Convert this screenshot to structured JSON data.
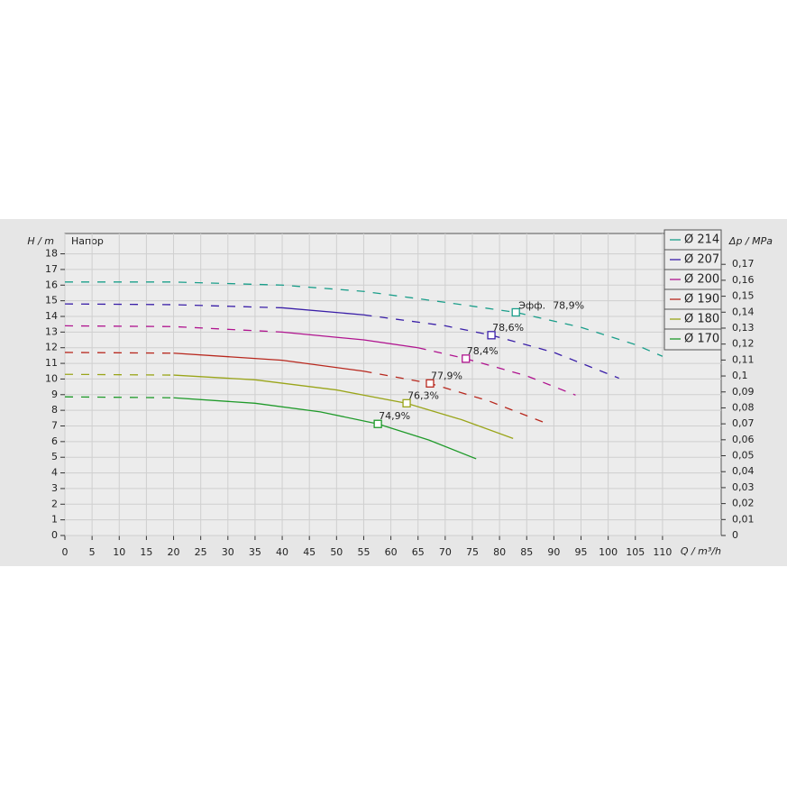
{
  "chart_data": {
    "type": "line",
    "title": "Напор",
    "x_label": "Q / m³/h",
    "y_label": "H / m",
    "y2_label": "Δp / MPa",
    "eff_label": "Эфф.",
    "xlim": [
      0,
      120.8
    ],
    "ylim": [
      0,
      19.3
    ],
    "y2lim": [
      0,
      0.18933
    ],
    "xticks": [
      0,
      5,
      10,
      15,
      20,
      25,
      30,
      35,
      40,
      45,
      50,
      55,
      60,
      65,
      70,
      75,
      80,
      85,
      90,
      95,
      100,
      105,
      110
    ],
    "yticks": [
      0,
      1,
      2,
      3,
      4,
      5,
      6,
      7,
      8,
      9,
      10,
      11,
      12,
      13,
      14,
      15,
      16,
      17,
      18
    ],
    "y2ticks": [
      0,
      {
        "value": 0.01,
        "label": "0,01"
      },
      {
        "value": 0.02,
        "label": "0,02"
      },
      {
        "value": 0.03,
        "label": "0,03"
      },
      {
        "value": 0.04,
        "label": "0,04"
      },
      {
        "value": 0.05,
        "label": "0,05"
      },
      {
        "value": 0.06,
        "label": "0,06"
      },
      {
        "value": 0.07,
        "label": "0,07"
      },
      {
        "value": 0.08,
        "label": "0,08"
      },
      {
        "value": 0.09,
        "label": "0,09"
      },
      {
        "value": 0.1,
        "label": "0,1"
      },
      {
        "value": 0.11,
        "label": "0,11"
      },
      {
        "value": 0.12,
        "label": "0,12"
      },
      {
        "value": 0.13,
        "label": "0,13"
      },
      {
        "value": 0.14,
        "label": "0,14"
      },
      {
        "value": 0.15,
        "label": "0,15"
      },
      {
        "value": 0.16,
        "label": "0,16"
      },
      {
        "value": 0.17,
        "label": "0,17"
      }
    ],
    "grid": true,
    "series": [
      {
        "name": "Ø 214",
        "color": "#1a9e8a",
        "x": [
          0,
          20,
          40,
          55,
          70,
          83,
          95,
          105,
          110
        ],
        "values": [
          16.2,
          16.2,
          16.0,
          15.6,
          14.9,
          14.26,
          13.3,
          12.2,
          11.45
        ],
        "eff": {
          "x": 83,
          "y": 14.26,
          "label": "78,9%"
        }
      },
      {
        "name": "Ø 207",
        "color": "#3a1fa8",
        "x": [
          0,
          20,
          40,
          55,
          70,
          78.5,
          90,
          102
        ],
        "values": [
          14.8,
          14.75,
          14.55,
          14.1,
          13.4,
          12.8,
          11.7,
          10.05
        ],
        "solid_x": [
          40,
          55
        ],
        "eff": {
          "x": 78.5,
          "y": 12.8,
          "label": "78,6%"
        }
      },
      {
        "name": "Ø 200",
        "color": "#b0148f",
        "x": [
          0,
          20,
          40,
          55,
          65,
          73.8,
          85,
          94
        ],
        "values": [
          13.4,
          13.35,
          13.0,
          12.5,
          12.0,
          11.3,
          10.2,
          8.97
        ],
        "solid_x": [
          40,
          65
        ],
        "eff": {
          "x": 73.8,
          "y": 11.3,
          "label": "78,4%"
        }
      },
      {
        "name": "Ø 190",
        "color": "#b8281e",
        "x": [
          0,
          20,
          40,
          55,
          67.2,
          78,
          88
        ],
        "values": [
          11.7,
          11.65,
          11.2,
          10.5,
          9.72,
          8.6,
          7.25
        ],
        "solid_x": [
          20,
          55
        ],
        "eff": {
          "x": 67.2,
          "y": 9.72,
          "label": "77,9%"
        }
      },
      {
        "name": "Ø 180",
        "color": "#9aa51a",
        "x": [
          0,
          20,
          35,
          50,
          62.9,
          73,
          82.5
        ],
        "values": [
          10.3,
          10.25,
          9.95,
          9.3,
          8.45,
          7.4,
          6.2
        ],
        "solid_x": [
          20,
          82.5
        ],
        "eff": {
          "x": 62.9,
          "y": 8.45,
          "label": "76,3%"
        }
      },
      {
        "name": "Ø 170",
        "color": "#1f9a2a",
        "x": [
          0,
          20,
          35,
          47,
          57.6,
          67,
          75.7
        ],
        "values": [
          8.86,
          8.8,
          8.45,
          7.9,
          7.13,
          6.1,
          4.9
        ],
        "solid_x": [
          20,
          75.7
        ],
        "eff": {
          "x": 57.6,
          "y": 7.13,
          "label": "74,9%"
        }
      }
    ]
  }
}
